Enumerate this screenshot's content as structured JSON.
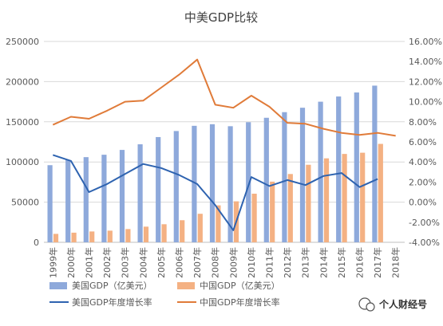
{
  "chart_data": {
    "type": "bar",
    "title": "中美GDP比较",
    "categories": [
      "1999年",
      "2000年",
      "2001年",
      "2002年",
      "2003年",
      "2004年",
      "2005年",
      "2006年",
      "2007年",
      "2008年",
      "2009年",
      "2010年",
      "2011年",
      "2012年",
      "2013年",
      "2014年",
      "2015年",
      "2016年",
      "2017年",
      "2018年"
    ],
    "y_left": {
      "lim": [
        0,
        250000
      ],
      "ticks": [
        "0",
        "50000",
        "100000",
        "150000",
        "200000",
        "250000"
      ]
    },
    "y_right": {
      "lim": [
        -4,
        16
      ],
      "ticks": [
        "-4.00%",
        "-2.00%",
        "0.00%",
        "2.00%",
        "4.00%",
        "6.00%",
        "8.00%",
        "10.00%",
        "12.00%",
        "14.00%",
        "16.00%"
      ]
    },
    "grid": true,
    "legend_position": "bottom",
    "series": [
      {
        "name": "美国GDP（亿美元）",
        "kind": "bar",
        "axis": "left",
        "color": "#8EA9DB",
        "values": [
          96000,
          102500,
          106000,
          109000,
          115000,
          122000,
          131000,
          138500,
          145000,
          147000,
          144500,
          149500,
          155000,
          162000,
          167500,
          175000,
          181500,
          186500,
          195000,
          null
        ]
      },
      {
        "name": "中国GDP（亿美元）",
        "kind": "bar",
        "axis": "left",
        "color": "#F4B183",
        "values": [
          10500,
          12000,
          13500,
          14500,
          16500,
          19500,
          22500,
          27500,
          35500,
          46000,
          51000,
          60500,
          75500,
          85000,
          96500,
          104500,
          110000,
          111500,
          122500,
          null
        ]
      },
      {
        "name": "美国GDP年度增长率",
        "kind": "line",
        "axis": "right",
        "color": "#2E63B0",
        "values": [
          4.7,
          4.1,
          1.0,
          1.8,
          2.8,
          3.8,
          3.4,
          2.7,
          1.8,
          -0.3,
          -2.8,
          2.5,
          1.6,
          2.2,
          1.7,
          2.6,
          2.9,
          1.5,
          2.3,
          null
        ]
      },
      {
        "name": "中国GDP年度增长率",
        "kind": "line",
        "axis": "right",
        "color": "#E07B39",
        "values": [
          7.7,
          8.5,
          8.3,
          9.1,
          10.0,
          10.1,
          11.4,
          12.7,
          14.2,
          9.7,
          9.4,
          10.6,
          9.5,
          7.9,
          7.8,
          7.3,
          6.9,
          6.7,
          6.9,
          6.6
        ]
      }
    ]
  },
  "watermark": {
    "text": "个人财经号"
  }
}
